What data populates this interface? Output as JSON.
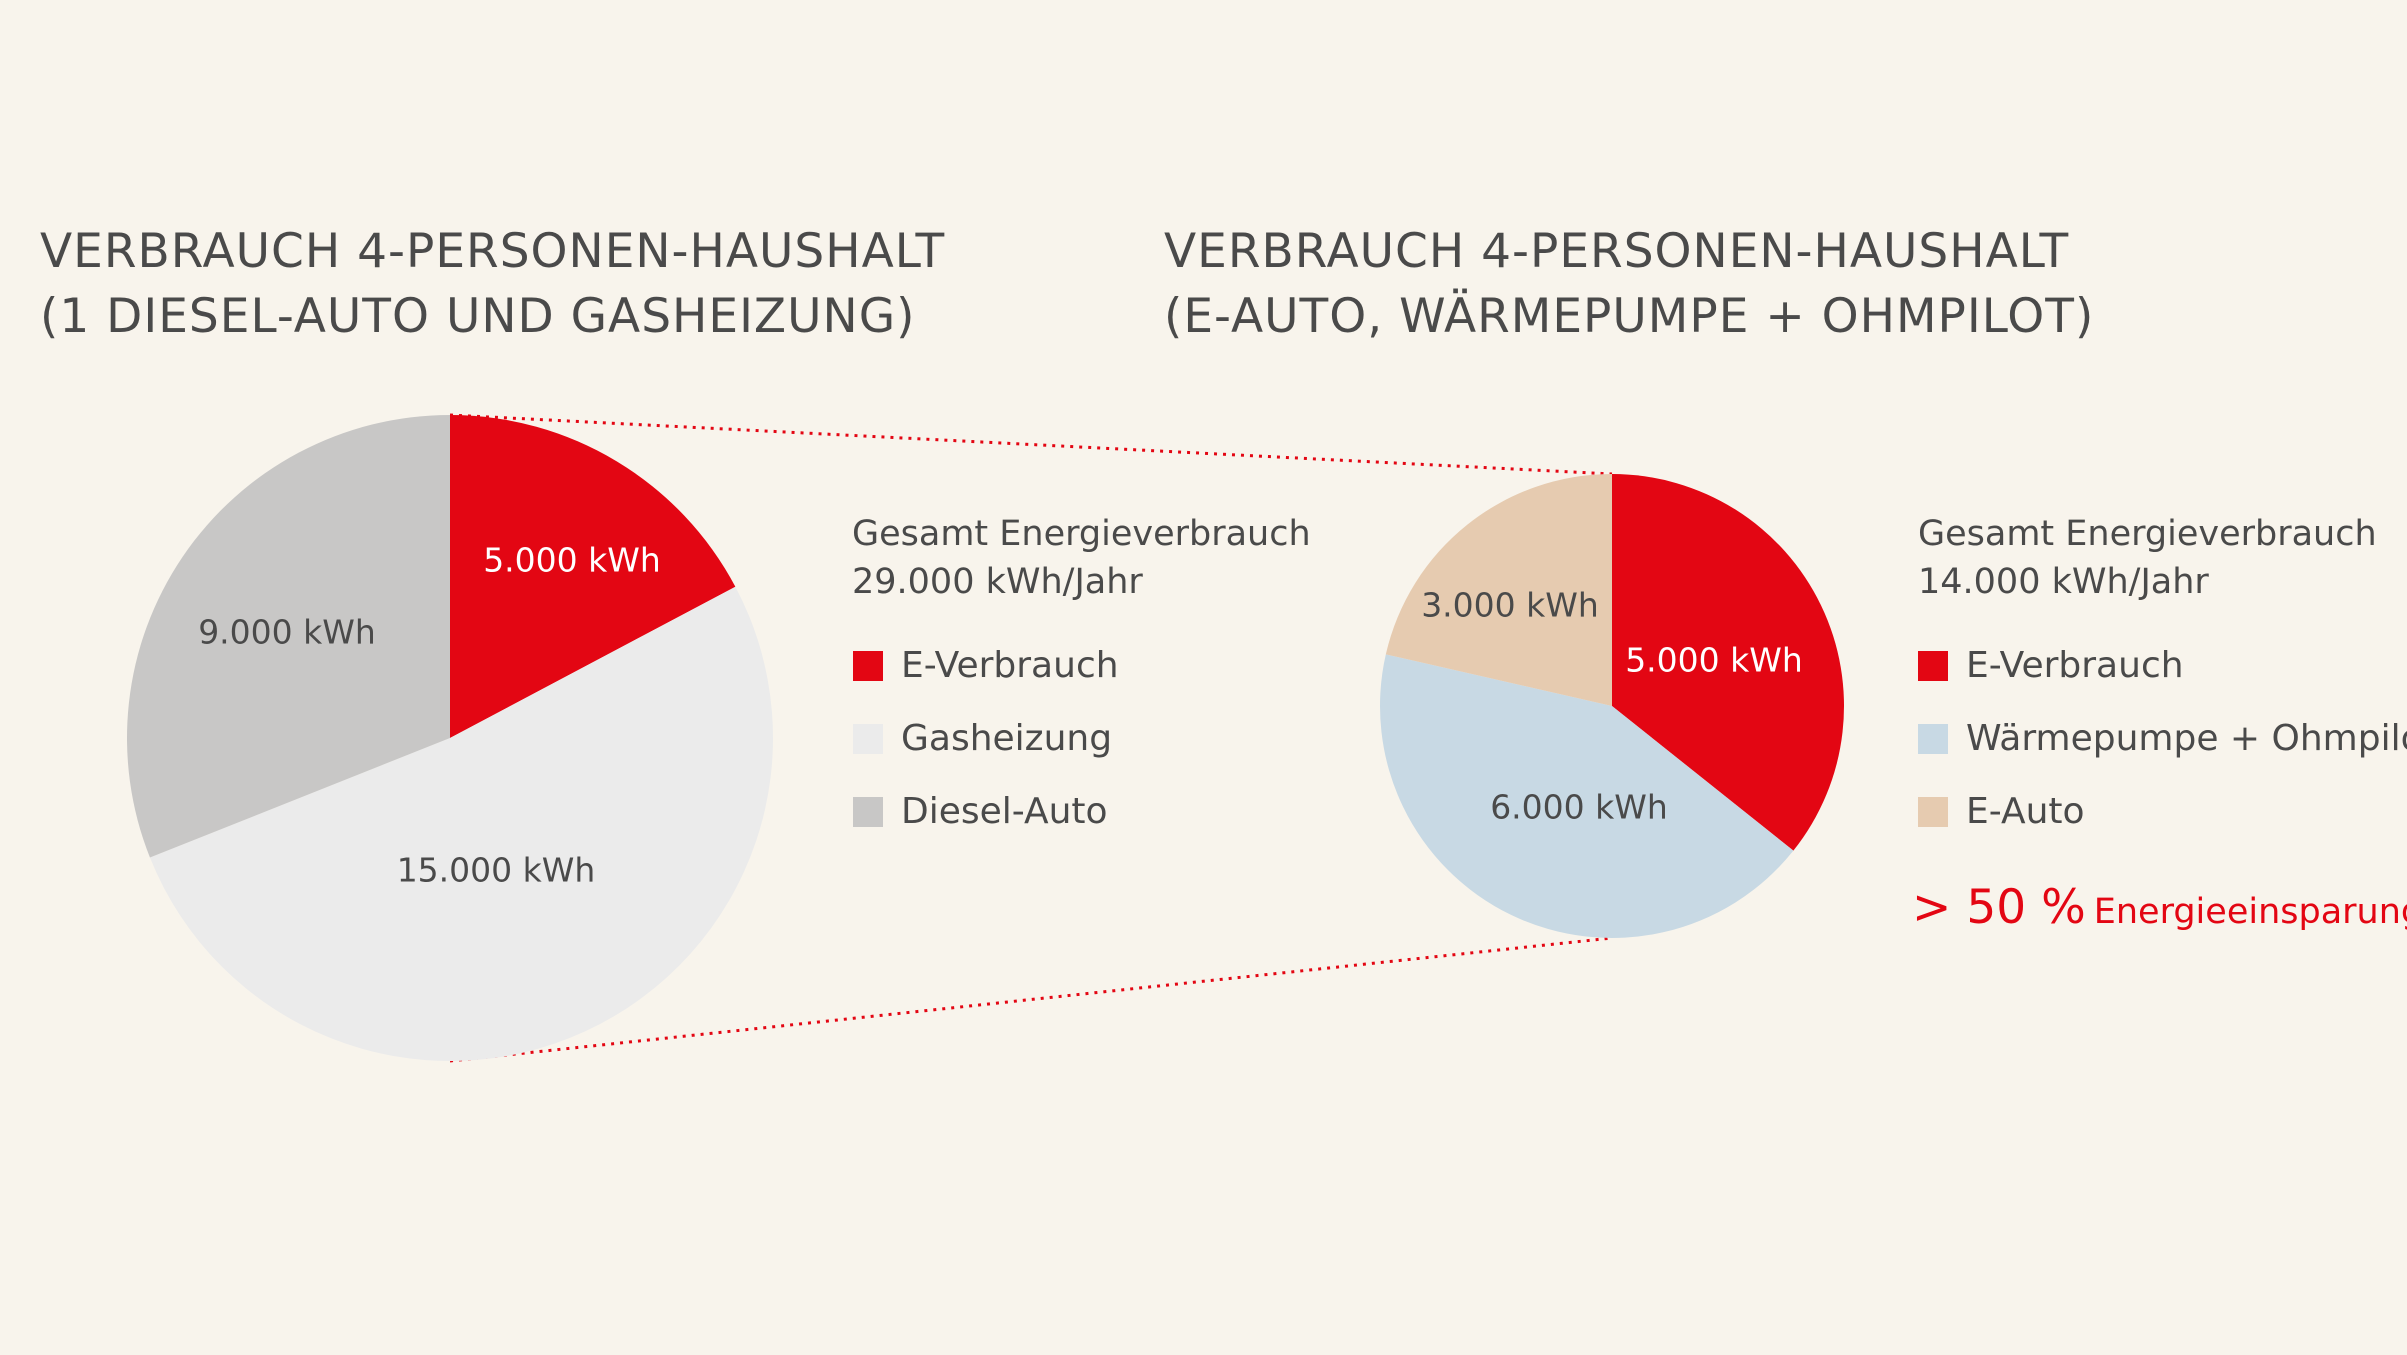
{
  "chart_data": [
    {
      "type": "pie",
      "title": "VERBRAUCH 4-PERSONEN-HAUSHALT\n(1 DIESEL-AUTO UND GASHEIZUNG)",
      "total_line1": "Gesamt Energieverbrauch",
      "total_line2": "29.000 kWh/Jahr",
      "unit": "kWh",
      "slices": [
        {
          "name": "E-Verbrauch",
          "value": 5000,
          "label": "5.000 kWh",
          "color": "#e30613",
          "label_color": "#ffffff"
        },
        {
          "name": "Gasheizung",
          "value": 15000,
          "label": "15.000 kWh",
          "color": "#ebebeb",
          "label_color": "#4a4a4a"
        },
        {
          "name": "Diesel-Auto",
          "value": 9000,
          "label": "9.000 kWh",
          "color": "#c8c7c6",
          "label_color": "#4a4a4a"
        }
      ]
    },
    {
      "type": "pie",
      "title": "VERBRAUCH 4-PERSONEN-HAUSHALT\n(E-AUTO, WÄRMEPUMPE + OHMPILOT)",
      "total_line1": "Gesamt Energieverbrauch",
      "total_line2": "14.000 kWh/Jahr",
      "unit": "kWh",
      "slices": [
        {
          "name": "E-Verbrauch",
          "value": 5000,
          "label": "5.000 kWh",
          "color": "#e30613",
          "label_color": "#ffffff"
        },
        {
          "name": "Wärmepumpe + Ohmpilot",
          "value": 6000,
          "label": "6.000 kWh",
          "color": "#c8d9e4",
          "label_color": "#4a4a4a"
        },
        {
          "name": "E-Auto",
          "value": 3000,
          "label": "3.000 kWh",
          "color": "#e6cbb0",
          "label_color": "#4a4a4a"
        }
      ]
    }
  ],
  "savings": {
    "big": "> 50 %",
    "text": "Energieeinsparung",
    "color": "#e30613"
  },
  "colors": {
    "background": "#f8f4ec",
    "accent": "#e30613",
    "text": "#4a4a4a"
  }
}
